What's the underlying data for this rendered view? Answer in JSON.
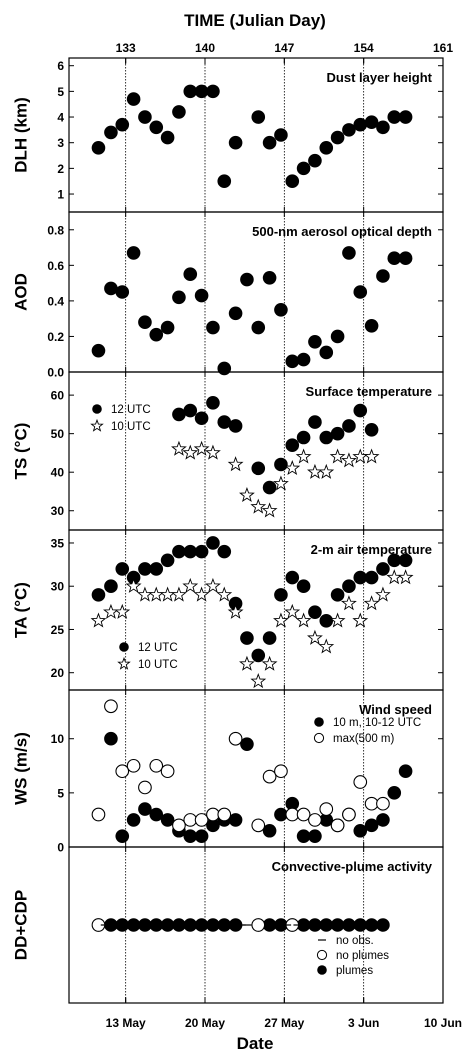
{
  "chart_data": {
    "type": "scatter",
    "top_axis": {
      "label": "TIME (Julian Day)",
      "ticks": [
        133,
        140,
        147,
        154,
        161
      ],
      "range": [
        128,
        161
      ]
    },
    "bottom_axis": {
      "label": "Date",
      "ticks": [
        "13 May",
        "20 May",
        "27 May",
        "3 Jun",
        "10 Jun"
      ],
      "tick_days": [
        133,
        140,
        147,
        154,
        161
      ]
    },
    "vertical_gridlines_at": [
      133,
      140,
      147,
      154
    ],
    "panels": [
      {
        "id": "dlh",
        "title": "Dust layer height",
        "ylabel": "DLH (km)",
        "ylim": [
          0.3,
          6.3
        ],
        "yticks": [
          "1",
          "2",
          "3",
          "4",
          "5",
          "6"
        ],
        "ytick_values": [
          1,
          2,
          3,
          4,
          5,
          6
        ],
        "series": [
          {
            "marker": "filled",
            "x": [
              130.6,
              131.7,
              132.7,
              133.7,
              134.7,
              135.7,
              136.7,
              137.7,
              138.7,
              139.7,
              140.7,
              141.7,
              142.7,
              144.7,
              145.7,
              146.7,
              147.7,
              148.7,
              149.7,
              150.7,
              151.7,
              152.7,
              153.7,
              154.7,
              155.7,
              156.7,
              157.7
            ],
            "y": [
              2.8,
              3.4,
              3.7,
              4.7,
              4.0,
              3.6,
              3.2,
              4.2,
              5.0,
              5.0,
              5.0,
              1.5,
              3.0,
              4.0,
              3.0,
              3.3,
              1.5,
              2.0,
              2.3,
              2.8,
              3.2,
              3.5,
              3.7,
              3.8,
              3.6,
              4.0,
              4.0
            ]
          }
        ]
      },
      {
        "id": "aod",
        "title": "500-nm aerosol optical depth",
        "ylabel": "AOD",
        "ylim": [
          0.0,
          0.9
        ],
        "yticks": [
          "0.0",
          "0.2",
          "0.4",
          "0.6",
          "0.8"
        ],
        "ytick_values": [
          0.0,
          0.2,
          0.4,
          0.6,
          0.8
        ],
        "series": [
          {
            "marker": "filled",
            "x": [
              130.6,
              131.7,
              132.7,
              133.7,
              134.7,
              135.7,
              136.7,
              137.7,
              138.7,
              139.7,
              140.7,
              141.7,
              142.7,
              143.7,
              144.7,
              145.7,
              146.7,
              147.7,
              148.7,
              149.7,
              150.7,
              151.7,
              152.7,
              153.7,
              154.7,
              155.7,
              156.7,
              157.7
            ],
            "y": [
              0.12,
              0.47,
              0.45,
              0.67,
              0.28,
              0.21,
              0.25,
              0.42,
              0.55,
              0.43,
              0.25,
              0.02,
              0.33,
              0.52,
              0.25,
              0.53,
              0.35,
              0.06,
              0.07,
              0.17,
              0.11,
              0.2,
              0.67,
              0.45,
              0.26,
              0.54,
              0.64,
              0.64
            ]
          }
        ]
      },
      {
        "id": "ts",
        "title": "Surface temperature",
        "ylabel": "TS (°C)",
        "ylim": [
          25,
          66
        ],
        "yticks": [
          "30",
          "40",
          "50",
          "60"
        ],
        "ytick_values": [
          30,
          40,
          50,
          60
        ],
        "legend": [
          {
            "marker": "filled",
            "label": "12 UTC"
          },
          {
            "marker": "star",
            "label": "10 UTC"
          }
        ],
        "series": [
          {
            "name": "12 UTC",
            "marker": "filled",
            "x": [
              137.7,
              138.7,
              139.7,
              140.7,
              141.7,
              142.7,
              144.7,
              145.7,
              146.7,
              147.7,
              148.7,
              149.7,
              150.7,
              151.7,
              152.7,
              153.7,
              154.7
            ],
            "y": [
              55,
              56,
              54,
              58,
              53,
              52,
              41,
              36,
              42,
              47,
              49,
              53,
              49,
              50,
              52,
              56,
              51
            ]
          },
          {
            "name": "10 UTC",
            "marker": "star",
            "x": [
              137.7,
              138.7,
              139.7,
              140.7,
              142.7,
              143.7,
              144.7,
              145.7,
              146.7,
              147.7,
              148.7,
              149.7,
              150.7,
              151.7,
              152.7,
              153.7,
              154.7
            ],
            "y": [
              46,
              45,
              46,
              45,
              42,
              34,
              31,
              30,
              37,
              41,
              44,
              40,
              40,
              44,
              43,
              44,
              44
            ]
          }
        ]
      },
      {
        "id": "ta",
        "title": "2-m air temperature",
        "ylabel": "TA (°C)",
        "ylim": [
          18,
          36.5
        ],
        "yticks": [
          "20",
          "25",
          "30",
          "35"
        ],
        "ytick_values": [
          20,
          25,
          30,
          35
        ],
        "legend": [
          {
            "marker": "filled",
            "label": "12 UTC"
          },
          {
            "marker": "star",
            "label": "10 UTC"
          }
        ],
        "series": [
          {
            "name": "12 UTC",
            "marker": "filled",
            "x": [
              130.6,
              131.7,
              132.7,
              133.7,
              134.7,
              135.7,
              136.7,
              137.7,
              138.7,
              139.7,
              140.7,
              141.7,
              142.7,
              143.7,
              144.7,
              145.7,
              146.7,
              147.7,
              148.7,
              149.7,
              150.7,
              151.7,
              152.7,
              153.7,
              154.7,
              155.7,
              156.7,
              157.7
            ],
            "y": [
              29,
              30,
              32,
              31,
              32,
              32,
              33,
              34,
              34,
              34,
              35,
              34,
              28,
              24,
              22,
              24,
              29,
              31,
              30,
              27,
              26,
              29,
              30,
              31,
              31,
              32,
              33,
              33
            ]
          },
          {
            "name": "10 UTC",
            "marker": "star",
            "x": [
              130.6,
              131.7,
              132.7,
              133.7,
              134.7,
              135.7,
              136.7,
              137.7,
              138.7,
              139.7,
              140.7,
              141.7,
              142.7,
              143.7,
              144.7,
              145.7,
              146.7,
              147.7,
              148.7,
              149.7,
              150.7,
              151.7,
              152.7,
              153.7,
              154.7,
              155.7,
              156.7,
              157.7
            ],
            "y": [
              26,
              27,
              27,
              30,
              29,
              29,
              29,
              29,
              30,
              29,
              30,
              29,
              27,
              21,
              19,
              21,
              26,
              27,
              26,
              24,
              23,
              26,
              28,
              26,
              28,
              29,
              31,
              31
            ]
          }
        ]
      },
      {
        "id": "ws",
        "title": "Wind speed",
        "ylabel": "WS (m/s)",
        "ylim": [
          0,
          14.5
        ],
        "yticks": [
          "0",
          "5",
          "10"
        ],
        "ytick_values": [
          0,
          5,
          10
        ],
        "legend": [
          {
            "marker": "filled",
            "label": "10 m, 10-12 UTC"
          },
          {
            "marker": "open",
            "label": "max(500 m)"
          }
        ],
        "series": [
          {
            "name": "10 m, 10-12 UTC",
            "marker": "filled",
            "x": [
              131.7,
              132.7,
              133.7,
              134.7,
              135.7,
              136.7,
              137.7,
              138.7,
              139.7,
              140.7,
              141.7,
              142.7,
              143.7,
              145.7,
              146.7,
              147.7,
              148.7,
              149.7,
              150.7,
              151.7,
              152.7,
              153.7,
              154.7,
              155.7,
              156.7,
              157.7
            ],
            "y": [
              10,
              1,
              2.5,
              3.5,
              3,
              2.5,
              1.5,
              1,
              1,
              2,
              2.5,
              2.5,
              9.5,
              1.5,
              3,
              4,
              1,
              1,
              2.5,
              2,
              3,
              1.5,
              2,
              2.5,
              5,
              7
            ]
          },
          {
            "name": "max(500 m)",
            "marker": "open",
            "x": [
              130.6,
              131.7,
              132.7,
              133.7,
              134.7,
              135.7,
              136.7,
              137.7,
              138.7,
              139.7,
              140.7,
              141.7,
              142.7,
              144.7,
              145.7,
              146.7,
              147.7,
              148.7,
              149.7,
              150.7,
              151.7,
              152.7,
              153.7,
              154.7,
              155.7
            ],
            "y": [
              3,
              13,
              7,
              7.5,
              5.5,
              7.5,
              7,
              2,
              2.5,
              2.5,
              3,
              3,
              10,
              2,
              6.5,
              7,
              3,
              3,
              2.5,
              3.5,
              2,
              3,
              6,
              4,
              4
            ]
          }
        ]
      },
      {
        "id": "dd",
        "title": "Convective-plume activity",
        "ylabel": "DD+CDP",
        "ylim": [
          0,
          1
        ],
        "yticks": [],
        "legend": [
          {
            "marker": "dash",
            "label": "no obs."
          },
          {
            "marker": "open",
            "label": "no plumes"
          },
          {
            "marker": "filled",
            "label": "plumes"
          }
        ],
        "series": [
          {
            "name": "plumes",
            "marker": "filled",
            "x": [
              131.7,
              132.7,
              133.7,
              134.7,
              135.7,
              136.7,
              137.7,
              138.7,
              139.7,
              140.7,
              141.7,
              142.7,
              145.7,
              146.7,
              148.7,
              149.7,
              150.7,
              151.7,
              152.7,
              153.7,
              154.7,
              155.7
            ],
            "y": [
              0.5,
              0.5,
              0.5,
              0.5,
              0.5,
              0.5,
              0.5,
              0.5,
              0.5,
              0.5,
              0.5,
              0.5,
              0.5,
              0.5,
              0.5,
              0.5,
              0.5,
              0.5,
              0.5,
              0.5,
              0.5,
              0.5
            ]
          },
          {
            "name": "no plumes",
            "marker": "open",
            "x": [
              130.6,
              144.7,
              147.7
            ],
            "y": [
              0.5,
              0.5,
              0.5
            ]
          },
          {
            "name": "no obs.",
            "marker": "dash",
            "x": [
              131.2,
              143.2,
              143.7,
              146.2,
              147.2,
              148.2
            ],
            "y": [
              0.5,
              0.5,
              0.5,
              0.5,
              0.5,
              0.5
            ]
          }
        ]
      }
    ]
  }
}
